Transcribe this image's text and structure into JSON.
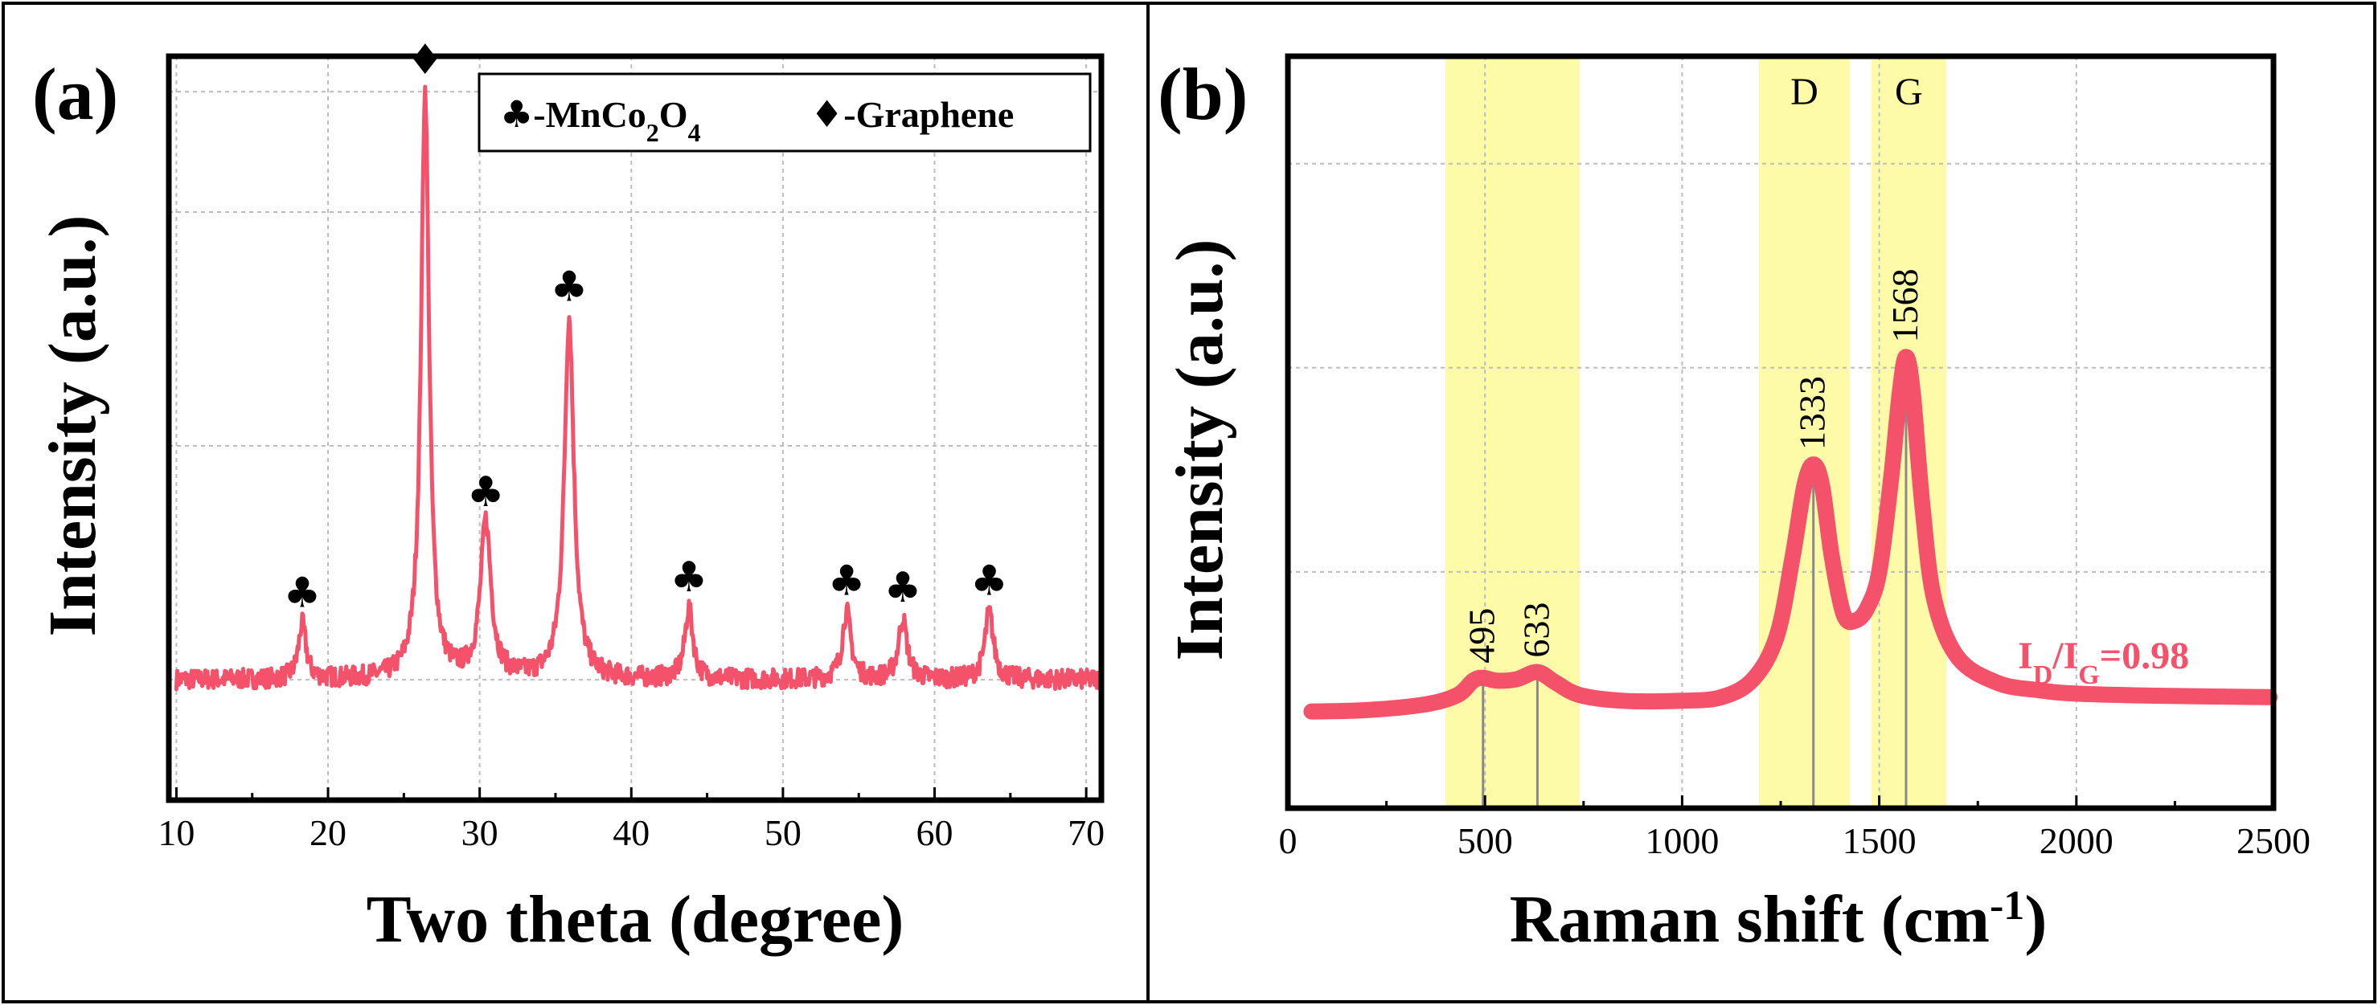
{
  "colors": {
    "series": "#f4516a",
    "band": "#fdfa9e"
  },
  "chart_data": [
    {
      "panel": "(a)",
      "type": "line",
      "title": "",
      "xlabel": "Two theta (degree)",
      "ylabel": "Intensity (a.u.)",
      "xlim": [
        9.5,
        71
      ],
      "ylim": [
        0,
        1.05
      ],
      "xticks": [
        10,
        20,
        30,
        40,
        50,
        60,
        70
      ],
      "grid": true,
      "baseline": 0.17,
      "peaks": [
        {
          "x": 18.3,
          "y": 0.248,
          "w": 0.3,
          "phase": "MnCo2O4"
        },
        {
          "x": 26.4,
          "y": 1.0,
          "w": 0.32,
          "phase": "Graphene"
        },
        {
          "x": 30.4,
          "y": 0.39,
          "w": 0.42,
          "phase": "MnCo2O4"
        },
        {
          "x": 35.9,
          "y": 0.68,
          "w": 0.38,
          "phase": "MnCo2O4"
        },
        {
          "x": 43.8,
          "y": 0.27,
          "w": 0.32,
          "phase": "MnCo2O4"
        },
        {
          "x": 54.2,
          "y": 0.265,
          "w": 0.34,
          "phase": "MnCo2O4"
        },
        {
          "x": 57.9,
          "y": 0.255,
          "w": 0.34,
          "phase": "MnCo2O4"
        },
        {
          "x": 63.6,
          "y": 0.265,
          "w": 0.34,
          "phase": "MnCo2O4"
        }
      ],
      "markers": {
        "MnCo2O4": "♣",
        "Graphene": "♦"
      },
      "legend": {
        "position": "top-right",
        "items": [
          {
            "symbol": "♣",
            "label": "-MnCo",
            "sub1": "2",
            "mid": "O",
            "sub2": "4"
          },
          {
            "symbol": "♦",
            "label": "-Graphene"
          }
        ]
      }
    },
    {
      "panel": "(b)",
      "type": "line",
      "title": "",
      "xlabel": "Raman shift (cm",
      "xlabel_sup": "-1",
      "xlabel_end": ")",
      "ylabel": "Intensity (a.u.)",
      "xlim": [
        0,
        2500
      ],
      "ylim": [
        0,
        1.05
      ],
      "xticks": [
        0,
        500,
        1000,
        1500,
        2000,
        2500
      ],
      "grid": true,
      "x": [
        60,
        200,
        350,
        430,
        470,
        495,
        530,
        580,
        633,
        680,
        740,
        850,
        1000,
        1100,
        1180,
        1240,
        1280,
        1310,
        1333,
        1355,
        1380,
        1410,
        1440,
        1470,
        1500,
        1530,
        1552,
        1568,
        1585,
        1610,
        1640,
        1700,
        1800,
        1900,
        2000,
        2200,
        2490
      ],
      "y": [
        0.135,
        0.137,
        0.145,
        0.158,
        0.178,
        0.182,
        0.178,
        0.18,
        0.19,
        0.175,
        0.158,
        0.15,
        0.15,
        0.155,
        0.18,
        0.24,
        0.35,
        0.45,
        0.48,
        0.45,
        0.35,
        0.27,
        0.262,
        0.28,
        0.33,
        0.46,
        0.58,
        0.63,
        0.58,
        0.42,
        0.29,
        0.21,
        0.175,
        0.165,
        0.16,
        0.157,
        0.155
      ],
      "bands": [
        {
          "from": 400,
          "to": 740,
          "label": ""
        },
        {
          "from": 1195,
          "to": 1425,
          "label": "D"
        },
        {
          "from": 1480,
          "to": 1670,
          "label": "G"
        }
      ],
      "peak_labels": [
        {
          "x": 495,
          "text": "495"
        },
        {
          "x": 633,
          "text": "633"
        },
        {
          "x": 1333,
          "text": "1333"
        },
        {
          "x": 1568,
          "text": "1568"
        }
      ],
      "annotation": {
        "pre": "I",
        "sub1": "D",
        "mid": "/I",
        "sub2": "G",
        "post": "=0.98"
      }
    }
  ]
}
